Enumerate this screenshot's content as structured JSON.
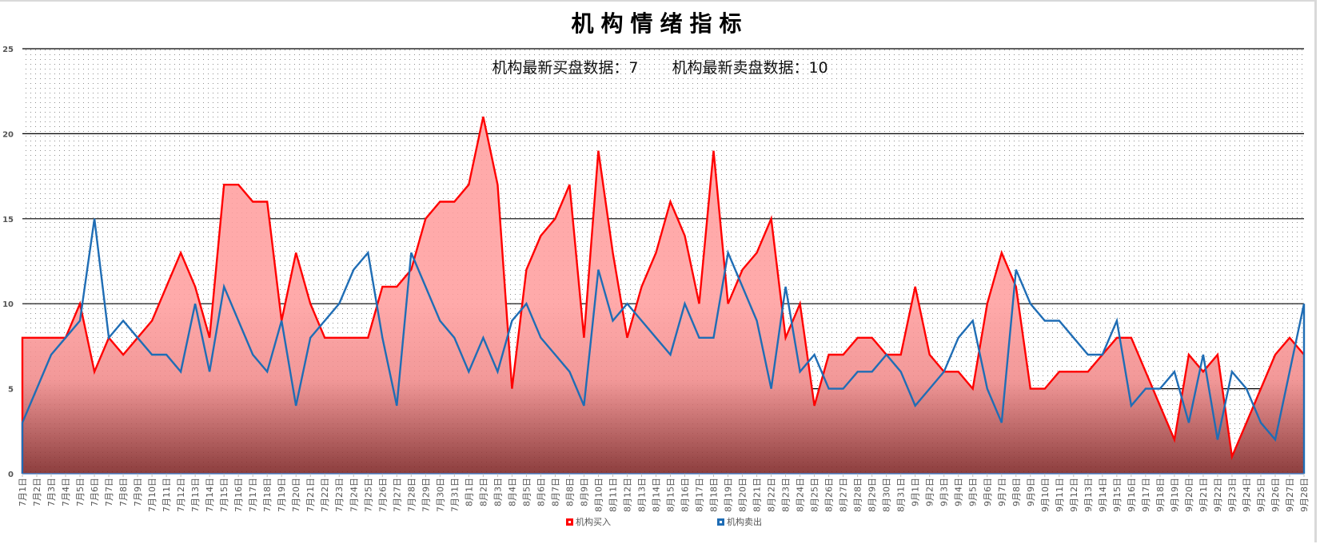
{
  "title": "机构情绪指标",
  "subtitle": {
    "buy_label": "机构最新买盘数据：",
    "buy_value": "7",
    "sell_label": "机构最新卖盘数据：",
    "sell_value": "10"
  },
  "legend": [
    {
      "label": "机构买入",
      "color": "#ff0000"
    },
    {
      "label": "机构卖出",
      "color": "#1f6db5"
    }
  ],
  "chart_data": {
    "type": "area",
    "title": "机构情绪指标",
    "xlabel": "",
    "ylabel": "",
    "ylim": [
      0,
      25
    ],
    "yticks": [
      0,
      5,
      10,
      15,
      20,
      25
    ],
    "grid": true,
    "legend_position": "bottom",
    "categories": [
      "7月1日",
      "7月2日",
      "7月3日",
      "7月4日",
      "7月5日",
      "7月6日",
      "7月7日",
      "7月8日",
      "7月9日",
      "7月10日",
      "7月11日",
      "7月12日",
      "7月13日",
      "7月14日",
      "7月15日",
      "7月16日",
      "7月17日",
      "7月18日",
      "7月19日",
      "7月20日",
      "7月21日",
      "7月22日",
      "7月23日",
      "7月24日",
      "7月25日",
      "7月26日",
      "7月27日",
      "7月28日",
      "7月29日",
      "7月30日",
      "7月31日",
      "8月1日",
      "8月2日",
      "8月3日",
      "8月4日",
      "8月5日",
      "8月6日",
      "8月7日",
      "8月8日",
      "8月9日",
      "8月10日",
      "8月11日",
      "8月12日",
      "8月13日",
      "8月14日",
      "8月15日",
      "8月16日",
      "8月17日",
      "8月18日",
      "8月19日",
      "8月20日",
      "8月21日",
      "8月22日",
      "8月23日",
      "8月24日",
      "8月25日",
      "8月26日",
      "8月27日",
      "8月28日",
      "8月29日",
      "8月30日",
      "8月31日",
      "9月1日",
      "9月2日",
      "9月3日",
      "9月4日",
      "9月5日",
      "9月6日",
      "9月7日",
      "9月8日",
      "9月9日",
      "9月10日",
      "9月11日",
      "9月12日",
      "9月13日",
      "9月14日",
      "9月15日",
      "9月16日",
      "9月17日",
      "9月18日",
      "9月19日",
      "9月20日",
      "9月21日",
      "9月22日",
      "9月23日",
      "9月24日",
      "9月25日",
      "9月26日",
      "9月27日",
      "9月28日"
    ],
    "series": [
      {
        "name": "机构买入",
        "type": "area",
        "color": "#ff0000",
        "values": [
          8,
          8,
          8,
          8,
          10,
          6,
          8,
          7,
          8,
          9,
          11,
          13,
          11,
          8,
          17,
          17,
          16,
          16,
          9,
          13,
          10,
          8,
          8,
          8,
          8,
          11,
          11,
          12,
          15,
          16,
          16,
          17,
          21,
          17,
          5,
          12,
          14,
          15,
          17,
          8,
          19,
          13,
          8,
          11,
          13,
          16,
          14,
          10,
          19,
          10,
          12,
          13,
          15,
          8,
          10,
          4,
          7,
          7,
          8,
          8,
          7,
          7,
          11,
          7,
          6,
          6,
          5,
          10,
          13,
          11,
          5,
          5,
          6,
          6,
          6,
          7,
          8,
          8,
          6,
          4,
          2,
          7,
          6,
          7,
          1,
          3,
          5,
          7,
          8,
          7
        ]
      },
      {
        "name": "机构卖出",
        "type": "line",
        "color": "#1f6db5",
        "values": [
          3,
          5,
          7,
          8,
          9,
          15,
          8,
          9,
          8,
          7,
          7,
          6,
          10,
          6,
          11,
          9,
          7,
          6,
          9,
          4,
          8,
          9,
          10,
          12,
          13,
          8,
          4,
          13,
          11,
          9,
          8,
          6,
          8,
          6,
          9,
          10,
          8,
          7,
          6,
          4,
          12,
          9,
          10,
          9,
          8,
          7,
          10,
          8,
          8,
          13,
          11,
          9,
          5,
          11,
          6,
          7,
          5,
          5,
          6,
          6,
          7,
          6,
          4,
          5,
          6,
          8,
          9,
          5,
          3,
          12,
          10,
          9,
          9,
          8,
          7,
          7,
          9,
          4,
          5,
          5,
          6,
          3,
          7,
          2,
          6,
          5,
          3,
          2,
          6,
          10
        ]
      }
    ]
  }
}
